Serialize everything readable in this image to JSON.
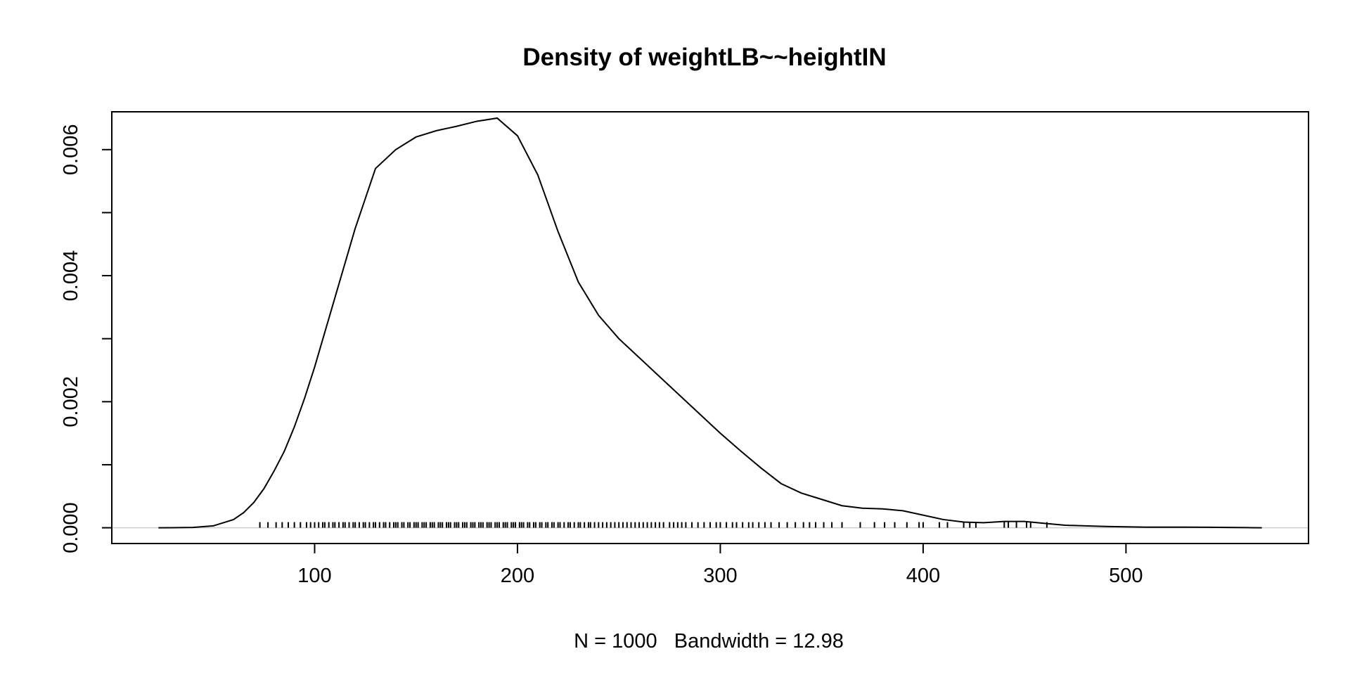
{
  "chart_data": {
    "type": "line",
    "title": "Density of weightLB~~heightIN",
    "xlabel": "N = 1000   Bandwidth = 12.98",
    "ylabel": "",
    "xlim": [
      0,
      590
    ],
    "ylim": [
      -0.00025,
      0.0066
    ],
    "x_ticks": [
      100,
      200,
      300,
      400,
      500
    ],
    "x_tick_labels": [
      "100",
      "200",
      "300",
      "400",
      "500"
    ],
    "y_ticks": [
      0.0,
      0.001,
      0.002,
      0.003,
      0.004,
      0.005,
      0.006
    ],
    "y_tick_labels": [
      "0.000",
      "",
      "0.002",
      "",
      "0.004",
      "",
      "0.006"
    ],
    "grid": false,
    "baseline": 0,
    "series": [
      {
        "x": [
          23,
          30,
          40,
          50,
          60,
          65,
          70,
          75,
          80,
          85,
          90,
          95,
          100,
          110,
          120,
          130,
          140,
          150,
          160,
          170,
          180,
          190,
          200,
          210,
          220,
          230,
          240,
          250,
          260,
          270,
          280,
          290,
          300,
          310,
          320,
          330,
          340,
          350,
          360,
          370,
          380,
          390,
          400,
          410,
          420,
          430,
          440,
          450,
          460,
          470,
          480,
          490,
          500,
          510,
          520,
          530,
          540,
          550,
          560,
          567
        ],
        "y": [
          0.0,
          1e-06,
          5e-06,
          3e-05,
          0.00013,
          0.00024,
          0.0004,
          0.00062,
          0.0009,
          0.00121,
          0.0016,
          0.00205,
          0.00255,
          0.00365,
          0.00475,
          0.0057,
          0.006,
          0.0062,
          0.0063,
          0.00637,
          0.00645,
          0.0065,
          0.00622,
          0.0056,
          0.0047,
          0.0039,
          0.00337,
          0.003,
          0.0027,
          0.0024,
          0.0021,
          0.0018,
          0.0015,
          0.00122,
          0.00095,
          0.0007,
          0.00055,
          0.00045,
          0.00035,
          0.00031,
          0.0003,
          0.00027,
          0.0002,
          0.00013,
          9e-05,
          8e-05,
          0.0001,
          0.0001,
          7e-05,
          4e-05,
          3e-05,
          2e-05,
          1.5e-05,
          1e-05,
          1e-05,
          1e-05,
          8e-06,
          5e-06,
          2e-06,
          0.0
        ]
      }
    ],
    "rug": [
      73,
      77,
      81,
      84,
      87,
      90,
      93,
      96,
      98,
      100,
      102,
      104,
      105,
      107,
      109,
      110,
      112,
      114,
      115,
      117,
      119,
      120,
      122,
      124,
      125,
      127,
      129,
      130,
      132,
      134,
      135,
      137,
      139,
      140,
      141,
      143,
      144,
      146,
      147,
      149,
      150,
      151,
      153,
      154,
      155,
      157,
      158,
      159,
      161,
      162,
      163,
      165,
      166,
      167,
      169,
      170,
      171,
      173,
      174,
      175,
      177,
      178,
      179,
      181,
      182,
      183,
      185,
      186,
      187,
      189,
      190,
      191,
      193,
      194,
      195,
      197,
      198,
      199,
      201,
      202,
      203,
      205,
      206,
      208,
      209,
      211,
      212,
      214,
      215,
      217,
      218,
      220,
      221,
      223,
      225,
      226,
      228,
      230,
      231,
      233,
      235,
      236,
      238,
      240,
      242,
      244,
      246,
      248,
      250,
      252,
      254,
      256,
      258,
      260,
      262,
      264,
      266,
      268,
      270,
      272,
      275,
      277,
      279,
      281,
      283,
      286,
      289,
      292,
      295,
      298,
      300,
      303,
      306,
      308,
      311,
      314,
      316,
      319,
      322,
      325,
      329,
      333,
      337,
      341,
      344,
      347,
      351,
      355,
      360,
      369,
      376,
      381,
      386,
      392,
      398,
      400,
      408,
      412,
      420,
      423,
      426,
      440,
      442,
      446,
      451,
      453,
      461
    ]
  }
}
